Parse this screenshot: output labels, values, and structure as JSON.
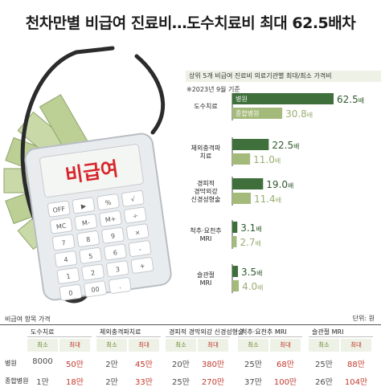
{
  "headline": "천차만별 비급여 진료비…도수치료비 최대 62.5배차",
  "illustration": {
    "calculator_label": "비급여",
    "key_labels": [
      "OFF",
      "▶",
      "%",
      "√",
      "MC",
      "M-",
      "M+",
      "÷",
      "7",
      "8",
      "9",
      "×",
      "4",
      "5",
      "6",
      "-",
      "1",
      "2",
      "3",
      "+",
      "0",
      "00",
      "."
    ]
  },
  "chart_data": {
    "type": "bar",
    "title": "상위 5개 비급여 진료비 의료기관별 최대/최소 가격비",
    "note": "※2023년 9월 기준",
    "unit": "배",
    "categories": [
      "도수치료",
      "체외충격파 치료",
      "경피적 경막외강 신경성형술",
      "척추·요천추 MRI",
      "슬관절 MRI"
    ],
    "category_lines": [
      [
        "도수치료"
      ],
      [
        "체외충격파",
        "치료"
      ],
      [
        "경피적",
        "경막외강",
        "신경성형술"
      ],
      [
        "척추·요천추",
        "MRI"
      ],
      [
        "슬관절",
        "MRI"
      ]
    ],
    "series": [
      {
        "name": "병원",
        "values": [
          62.5,
          22.5,
          19.0,
          3.1,
          3.5
        ],
        "labels": [
          "62.5",
          "22.5",
          "19.0",
          "3.1",
          "3.5"
        ]
      },
      {
        "name": "종합병원",
        "values": [
          30.8,
          11.0,
          11.4,
          2.7,
          4.0
        ],
        "labels": [
          "30.8",
          "11.0",
          "11.4",
          "2.7",
          "4.0"
        ]
      }
    ],
    "colors": {
      "병원": "#3f6f3b",
      "종합병원": "#a4ba7a"
    }
  },
  "table": {
    "caption": "비급여 항목 가격",
    "unit": "단위: 원",
    "groups": [
      "도수치료",
      "체외충격파치료",
      "경피적 경막외강 신경성형술",
      "척추·요천추 MRI",
      "슬관절 MRI"
    ],
    "sub_headers": [
      "최소",
      "최대"
    ],
    "rows": [
      {
        "label": "병원",
        "values": [
          "8000",
          "50만",
          "2만",
          "45만",
          "20만",
          "380만",
          "25만",
          "68만",
          "25만",
          "88만"
        ]
      },
      {
        "label": "종합병원",
        "values": [
          "1만",
          "18만",
          "2만",
          "33만",
          "25만",
          "270만",
          "37만",
          "100만",
          "26만",
          "104만"
        ]
      }
    ]
  },
  "colors": {
    "accent_dark": "#3f6f3b",
    "accent_light": "#a4ba7a",
    "header_bg": "#eef2e6",
    "max_red": "#c0392b"
  }
}
